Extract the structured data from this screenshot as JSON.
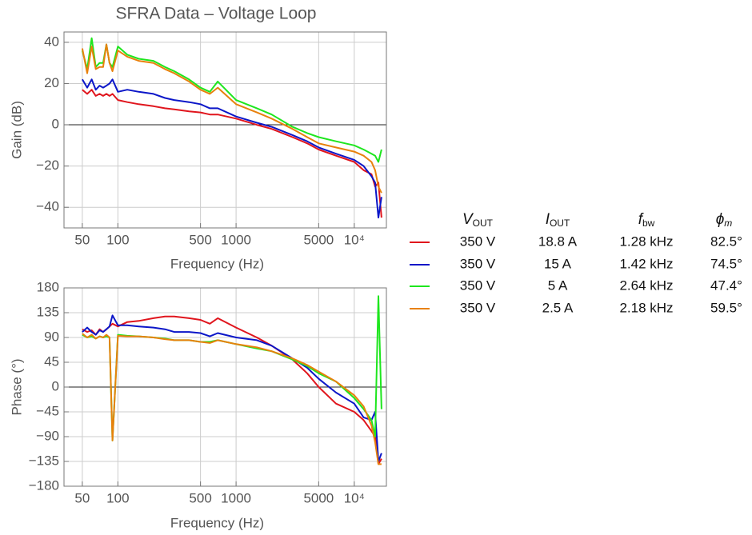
{
  "chart_data": [
    {
      "type": "line",
      "title": "SFRA Data – Voltage Loop",
      "x_label": "Frequency (Hz)",
      "y_label": "Gain (dB)",
      "x": [
        50,
        55,
        60,
        65,
        70,
        75,
        80,
        85,
        90,
        100,
        120,
        150,
        200,
        250,
        300,
        400,
        500,
        600,
        700,
        1000,
        1500,
        2000,
        3000,
        4000,
        5000,
        7000,
        10000,
        12000,
        14000,
        15000,
        16000,
        17000
      ],
      "x_log": true,
      "xlim": [
        35,
        18700
      ],
      "xticks": [
        50,
        100,
        500,
        1000,
        5000,
        {
          "value": 10000,
          "label": "10⁴"
        }
      ],
      "ylim": [
        -50,
        45
      ],
      "yticks": [
        {
          "value": -40,
          "label": "−40"
        },
        {
          "value": -20,
          "label": "−20"
        },
        0,
        20,
        40
      ],
      "grid": true,
      "series": [
        {
          "color": "#e0151d",
          "values": [
            17,
            15,
            17,
            14,
            15,
            14,
            15,
            14,
            15,
            12,
            11,
            10,
            9,
            8,
            7.5,
            6.5,
            6,
            5,
            5,
            3,
            0,
            -2,
            -6,
            -9,
            -12,
            -15,
            -18,
            -22,
            -24,
            -30,
            -28,
            -45
          ]
        },
        {
          "color": "#0b16c8",
          "values": [
            22,
            18,
            22,
            17,
            19,
            18,
            19,
            20,
            22,
            16,
            17,
            16,
            15,
            13,
            12,
            11,
            10,
            8,
            8,
            4,
            1,
            -1,
            -5,
            -8,
            -11,
            -14,
            -17,
            -20,
            -25,
            -28,
            -45,
            -35
          ]
        },
        {
          "color": "#1ee61e",
          "values": [
            36,
            27,
            42,
            28,
            30,
            30,
            39,
            30,
            28,
            38,
            34,
            32,
            31,
            28,
            26,
            22,
            18,
            16,
            21,
            12,
            8,
            5,
            -1,
            -4,
            -6,
            -8,
            -10,
            -12,
            -14,
            -15,
            -18,
            -12
          ]
        },
        {
          "color": "#e8810c",
          "values": [
            37,
            25,
            38,
            27,
            28,
            28,
            39,
            30,
            26,
            36,
            33,
            31,
            30,
            27,
            25,
            21,
            17,
            15,
            18,
            10,
            6,
            3,
            -2,
            -6,
            -9,
            -11,
            -13,
            -15,
            -18,
            -22,
            -30,
            -33
          ]
        }
      ]
    },
    {
      "type": "line",
      "x_label": "Frequency (Hz)",
      "y_label": "Phase (°)",
      "x": [
        50,
        55,
        60,
        65,
        70,
        75,
        80,
        85,
        90,
        100,
        120,
        150,
        200,
        250,
        300,
        400,
        500,
        600,
        700,
        1000,
        1500,
        2000,
        3000,
        4000,
        5000,
        7000,
        10000,
        12000,
        14000,
        15000,
        16000,
        17000
      ],
      "x_log": true,
      "xlim": [
        35,
        18700
      ],
      "xticks": [
        50,
        100,
        500,
        1000,
        5000,
        {
          "value": 10000,
          "label": "10⁴"
        }
      ],
      "ylim": [
        -180,
        180
      ],
      "yticks": [
        {
          "value": -180,
          "label": "−180"
        },
        {
          "value": -135,
          "label": "−135"
        },
        {
          "value": -90,
          "label": "−90"
        },
        {
          "value": -45,
          "label": "−45"
        },
        0,
        45,
        90,
        135,
        180
      ],
      "grid": true,
      "series": [
        {
          "color": "#e0151d",
          "values": [
            105,
            100,
            103,
            95,
            105,
            100,
            105,
            110,
            115,
            110,
            118,
            120,
            125,
            128,
            128,
            125,
            122,
            115,
            125,
            108,
            90,
            75,
            50,
            25,
            0,
            -30,
            -45,
            -60,
            -80,
            -90,
            -140,
            -130
          ]
        },
        {
          "color": "#0b16c8",
          "values": [
            100,
            108,
            100,
            95,
            103,
            100,
            105,
            110,
            130,
            112,
            112,
            110,
            108,
            105,
            100,
            100,
            98,
            92,
            98,
            90,
            85,
            75,
            52,
            35,
            15,
            -10,
            -30,
            -55,
            -60,
            -45,
            -135,
            -120
          ]
        },
        {
          "color": "#1ee61e",
          "values": [
            95,
            90,
            92,
            88,
            92,
            90,
            92,
            90,
            -97,
            95,
            93,
            92,
            90,
            88,
            85,
            85,
            82,
            82,
            85,
            78,
            70,
            65,
            50,
            38,
            25,
            10,
            -20,
            -40,
            -60,
            -90,
            165,
            -40
          ]
        },
        {
          "color": "#e8810c",
          "values": [
            97,
            90,
            95,
            88,
            92,
            90,
            95,
            90,
            -97,
            93,
            92,
            92,
            90,
            87,
            85,
            85,
            82,
            80,
            85,
            78,
            72,
            65,
            52,
            40,
            28,
            10,
            -15,
            -35,
            -70,
            -100,
            -140,
            -140
          ]
        }
      ]
    }
  ],
  "legend_table": {
    "headers": [
      {
        "symbol": "V",
        "subscript": "OUT"
      },
      {
        "symbol": "I",
        "subscript": "OUT"
      },
      {
        "symbol": "f",
        "subscript": "bw"
      },
      {
        "symbol": "ϕ",
        "subscript": "m"
      }
    ],
    "rows": [
      [
        "350 V",
        "18.8 A",
        "1.28 kHz",
        "82.5°"
      ],
      [
        "350 V",
        "15 A",
        "1.42 kHz",
        "74.5°"
      ],
      [
        "350 V",
        "5 A",
        "2.64 kHz",
        "47.4°"
      ],
      [
        "350 V",
        "2.5 A",
        "2.18 kHz",
        "59.5°"
      ]
    ]
  }
}
